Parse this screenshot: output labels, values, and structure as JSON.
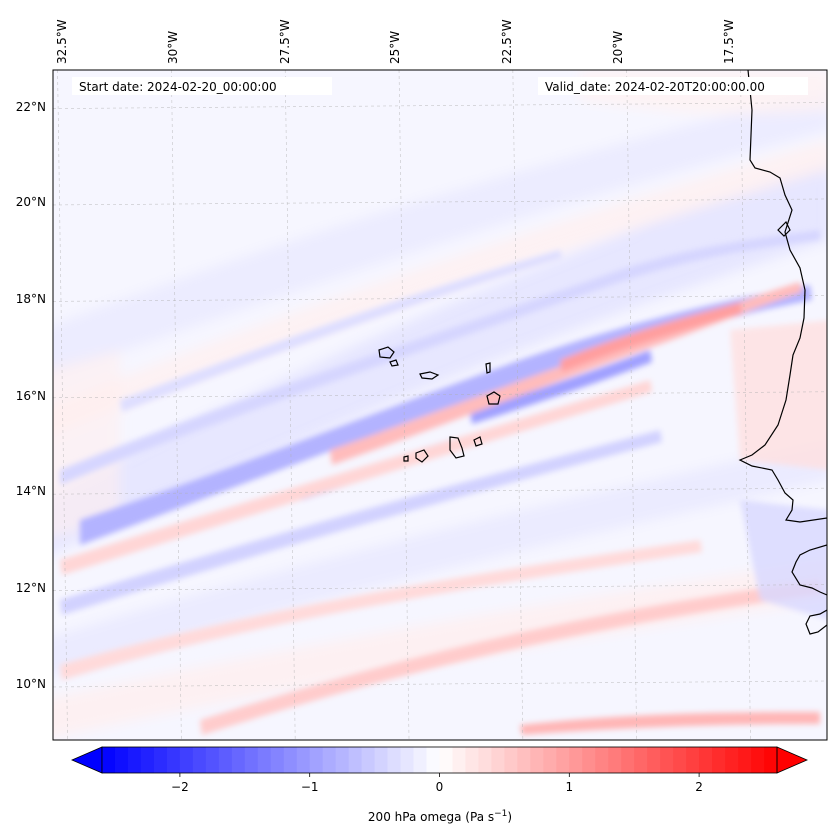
{
  "map": {
    "start_label": "Start date: 2024-02-20_00:00:00",
    "valid_label": "Valid_date: 2024-02-20T20:00:00.00",
    "longitude_labels": [
      "32.5°W",
      "30°W",
      "27.5°W",
      "25°W",
      "22.5°W",
      "20°W",
      "17.5°W"
    ],
    "latitude_labels": [
      "22°N",
      "20°N",
      "18°N",
      "16°N",
      "14°N",
      "12°N",
      "10°N"
    ],
    "lon_values": [
      -32.5,
      -30,
      -27.5,
      -25,
      -22.5,
      -20,
      -17.5
    ],
    "lat_values": [
      22,
      20,
      18,
      16,
      14,
      12,
      10
    ],
    "extent": {
      "lon_min": -32.6,
      "lon_max": -15.6,
      "lat_min": 8.9,
      "lat_max": 22.8
    },
    "field_name": "200 hPa omega",
    "islands": [
      "Santo Antão",
      "São Vicente",
      "São Nicolau",
      "Sal",
      "Boa Vista",
      "Maio",
      "Santiago",
      "Fogo",
      "Brava"
    ]
  },
  "colorbar": {
    "label_main": "200 hPa omega (Pa s",
    "label_exp": "−1",
    "label_close": ")",
    "vmin": -2.6,
    "vmax": 2.6,
    "tick_values": [
      -2,
      -1,
      0,
      1,
      2
    ],
    "tick_labels": [
      "−2",
      "−1",
      "0",
      "1",
      "2"
    ],
    "cmap": "bwr",
    "low_color": "#0000ff",
    "mid_color": "#ffffff",
    "high_color": "#ff0000"
  },
  "colors": {
    "grid": "#b0b0b0",
    "coast": "#000000",
    "frame": "#000000"
  }
}
